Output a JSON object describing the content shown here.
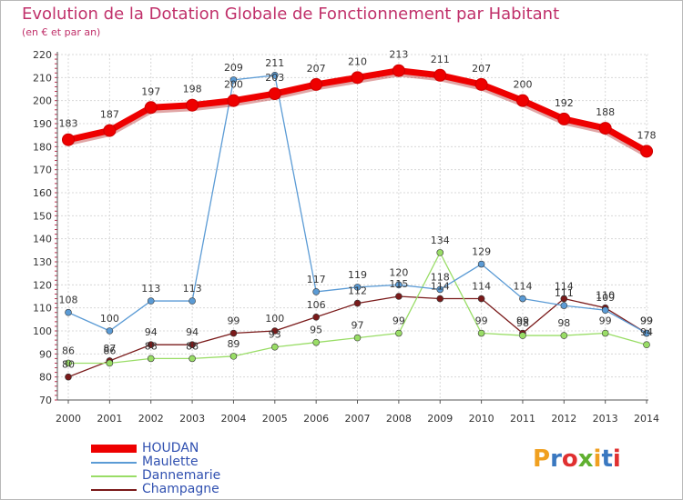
{
  "chart_data": {
    "type": "line",
    "title": "Evolution de la Dotation Globale de Fonctionnement par Habitant",
    "subtitle": "(en € et par an)",
    "xlabel": "",
    "ylabel": "",
    "ylim": [
      70,
      220
    ],
    "yticks": [
      70,
      80,
      90,
      100,
      110,
      120,
      130,
      140,
      150,
      160,
      170,
      180,
      190,
      200,
      210,
      220
    ],
    "categories": [
      "2000",
      "2001",
      "2002",
      "2003",
      "2004",
      "2005",
      "2006",
      "2007",
      "2008",
      "2009",
      "2010",
      "2011",
      "2012",
      "2013",
      "2014"
    ],
    "series": [
      {
        "name": "HOUDAN",
        "color": "#ee0000",
        "values": [
          183,
          187,
          197,
          198,
          200,
          203,
          207,
          210,
          213,
          211,
          207,
          200,
          192,
          188,
          178
        ]
      },
      {
        "name": "Maulette",
        "color": "#5b9bd5",
        "values": [
          108,
          100,
          113,
          113,
          209,
          211,
          117,
          119,
          120,
          118,
          129,
          114,
          111,
          109,
          99
        ]
      },
      {
        "name": "Dannemarie",
        "color": "#99dd66",
        "values": [
          86,
          86,
          88,
          88,
          89,
          93,
          95,
          97,
          99,
          134,
          99,
          98,
          98,
          99,
          94
        ]
      },
      {
        "name": "Champagne",
        "color": "#7a1a1a",
        "values": [
          80,
          87,
          94,
          94,
          99,
          100,
          106,
          112,
          115,
          114,
          114,
          99,
          114,
          110,
          99
        ]
      }
    ],
    "data_labels": [
      [
        "183",
        "187",
        "197",
        "198",
        "200",
        "203",
        "207",
        "210",
        "213",
        "211",
        "207",
        "200",
        "192",
        "188",
        "178"
      ],
      [
        "108",
        "100",
        "113",
        "113",
        "209",
        "211",
        "117",
        "119",
        "120",
        "118",
        "129",
        "114",
        "111",
        "109",
        "99"
      ],
      [
        "86",
        "86",
        "88",
        "88",
        "89",
        "93",
        "95",
        "97",
        "99",
        "134",
        "99",
        "98",
        "98",
        "99",
        "94"
      ],
      [
        "80",
        "87",
        "94",
        "94",
        "99",
        "100",
        "106",
        "112",
        "115",
        "114",
        "114",
        "99",
        "114",
        "110",
        "99"
      ]
    ],
    "legend": [
      "HOUDAN",
      "Maulette",
      "Dannemarie",
      "Champagne"
    ],
    "legend_position": "bottom-left",
    "grid": true
  },
  "brand": {
    "logo_text": "Proxiti",
    "colors": [
      "#f0a020",
      "#3a78c0",
      "#e03030",
      "#60b030",
      "#f0a020",
      "#3a78c0",
      "#e03030"
    ]
  }
}
